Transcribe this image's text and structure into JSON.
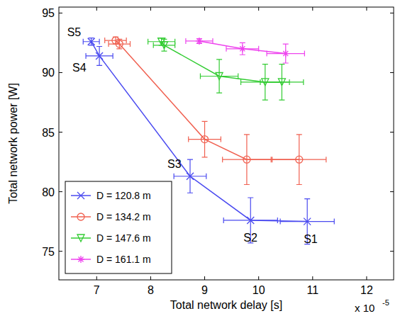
{
  "chart_data": {
    "type": "line",
    "x_label": "Total network delay [s]",
    "y_label": "Total network power [W]",
    "x_multiplier": {
      "base": "x 10",
      "exponent": "-5"
    },
    "xlim": [
      6.3,
      12.5
    ],
    "xticks": [
      7,
      8,
      9,
      10,
      11,
      12
    ],
    "ylim": [
      72.6,
      95.5
    ],
    "yticks": [
      75,
      80,
      85,
      90,
      95
    ],
    "grid": false,
    "legend": "lower left",
    "series": [
      {
        "name": "D = 120.8 m",
        "color": "#4a4af0",
        "marker": "x",
        "line_style": "solid",
        "x": [
          6.9,
          7.05,
          8.73,
          9.85,
          10.9
        ],
        "values": [
          92.6,
          91.4,
          81.3,
          77.6,
          77.5
        ],
        "x_errors": [
          0.15,
          0.25,
          0.3,
          0.5,
          0.5
        ],
        "y_errors": [
          0.3,
          0.8,
          1.4,
          1.9,
          1.9
        ]
      },
      {
        "name": "D = 134.2 m",
        "color": "#f06050",
        "marker": "circle",
        "line_style": "solid",
        "x": [
          7.35,
          7.42,
          9.0,
          9.78,
          10.75
        ],
        "values": [
          92.7,
          92.4,
          84.4,
          82.7,
          82.7
        ],
        "x_errors": [
          0.2,
          0.2,
          0.3,
          0.45,
          0.5
        ],
        "y_errors": [
          0.3,
          0.4,
          1.5,
          2.1,
          2.1
        ]
      },
      {
        "name": "D = 147.6 m",
        "color": "#33cc33",
        "marker": "triangle-down",
        "line_style": "solid",
        "x": [
          8.2,
          8.25,
          9.27,
          10.12,
          10.43
        ],
        "values": [
          92.6,
          92.3,
          89.7,
          89.2,
          89.2
        ],
        "x_errors": [
          0.25,
          0.2,
          0.35,
          0.45,
          0.4
        ],
        "y_errors": [
          0.3,
          0.5,
          1.4,
          1.5,
          1.5
        ]
      },
      {
        "name": "D = 161.1 m",
        "color": "#ee44ee",
        "marker": "star",
        "line_style": "solid",
        "x": [
          8.9,
          9.7,
          10.5
        ],
        "values": [
          92.65,
          92.0,
          91.6
        ],
        "x_errors": [
          0.25,
          0.3,
          0.35
        ],
        "y_errors": [
          0.2,
          0.5,
          0.8
        ]
      }
    ],
    "annotations": [
      {
        "text": "S5",
        "series": 0,
        "point": 0
      },
      {
        "text": "S4",
        "series": 0,
        "point": 1
      },
      {
        "text": "S3",
        "series": 0,
        "point": 2
      },
      {
        "text": "S2",
        "series": 0,
        "point": 3
      },
      {
        "text": "S1",
        "series": 0,
        "point": 4
      }
    ]
  }
}
